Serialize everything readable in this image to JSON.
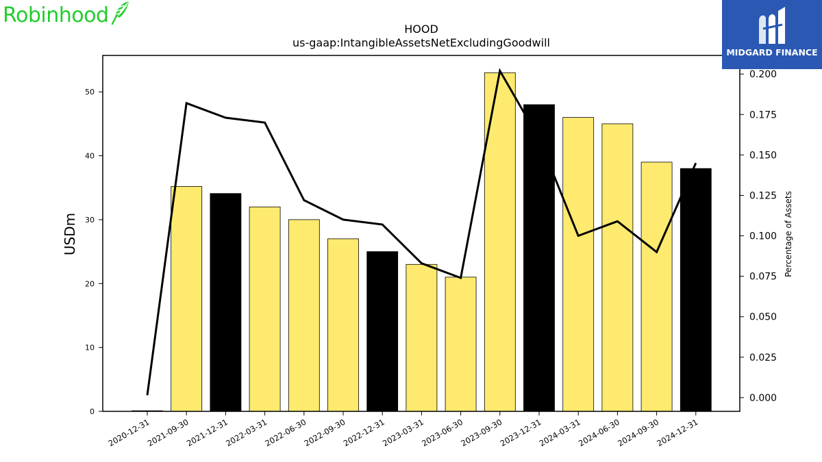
{
  "brand": {
    "name": "Robinhood",
    "color": "#21ce2b",
    "icon": "feather-icon"
  },
  "corner_badge": {
    "text": "MIDGARD FINANCE",
    "background": "#2b58b3",
    "icon": "midgard-logo-icon"
  },
  "chart_data": {
    "type": "bar",
    "title": "HOOD",
    "subtitle": "us-gaap:IntangibleAssetsNetExcludingGoodwill",
    "ylabel": "USDm",
    "y2label": "Percentage of Assets",
    "categories": [
      "2020-12-31",
      "2021-09-30",
      "2021-12-31",
      "2022-03-31",
      "2022-06-30",
      "2022-09-30",
      "2022-12-31",
      "2023-03-31",
      "2023-06-30",
      "2023-09-30",
      "2023-12-31",
      "2024-03-31",
      "2024-06-30",
      "2024-09-30",
      "2024-12-31"
    ],
    "series": [
      {
        "kind": "bar",
        "axis": "left",
        "values": [
          0.1,
          35.2,
          34.1,
          32.0,
          30.0,
          27.0,
          25.0,
          23.0,
          21.0,
          53.0,
          48.0,
          46.0,
          45.0,
          39.0,
          38.0
        ],
        "colors": [
          "#fdea6f",
          "#fdea6f",
          "#000000",
          "#fdea6f",
          "#fdea6f",
          "#fdea6f",
          "#000000",
          "#fdea6f",
          "#fdea6f",
          "#fdea6f",
          "#000000",
          "#fdea6f",
          "#fdea6f",
          "#fdea6f",
          "#000000"
        ]
      },
      {
        "kind": "line",
        "axis": "right",
        "values": [
          0.0015,
          0.182,
          0.173,
          0.17,
          0.122,
          0.11,
          0.107,
          0.083,
          0.074,
          0.202,
          0.16,
          0.1,
          0.109,
          0.09,
          0.145
        ]
      }
    ],
    "ylim": [
      0,
      55.7
    ],
    "yticks": [
      0,
      10,
      20,
      30,
      40,
      50
    ],
    "y2lim": [
      -0.0085,
      0.2115
    ],
    "y2ticks": [
      "0.000",
      "0.025",
      "0.050",
      "0.075",
      "0.100",
      "0.125",
      "0.150",
      "0.175",
      "0.200"
    ],
    "grid": false,
    "legend": "none"
  }
}
